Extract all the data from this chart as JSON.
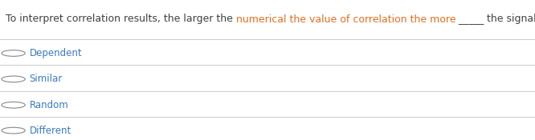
{
  "question_segments": [
    {
      "text": "To interpret correlation results, the larger the ",
      "color": "#404040"
    },
    {
      "text": "numerical the value of correlation the more",
      "color": "#e07020"
    },
    {
      "text": " _____ ",
      "color": "#404040"
    },
    {
      "text": "the signals are",
      "color": "#404040"
    }
  ],
  "options": [
    "Dependent",
    "Similar",
    "Random",
    "Different"
  ],
  "option_color": "#3a7abf",
  "background_color": "#ffffff",
  "line_color": "#cccccc",
  "circle_color": "#888888",
  "option_fontsize": 8.5,
  "question_fontsize": 9.0
}
